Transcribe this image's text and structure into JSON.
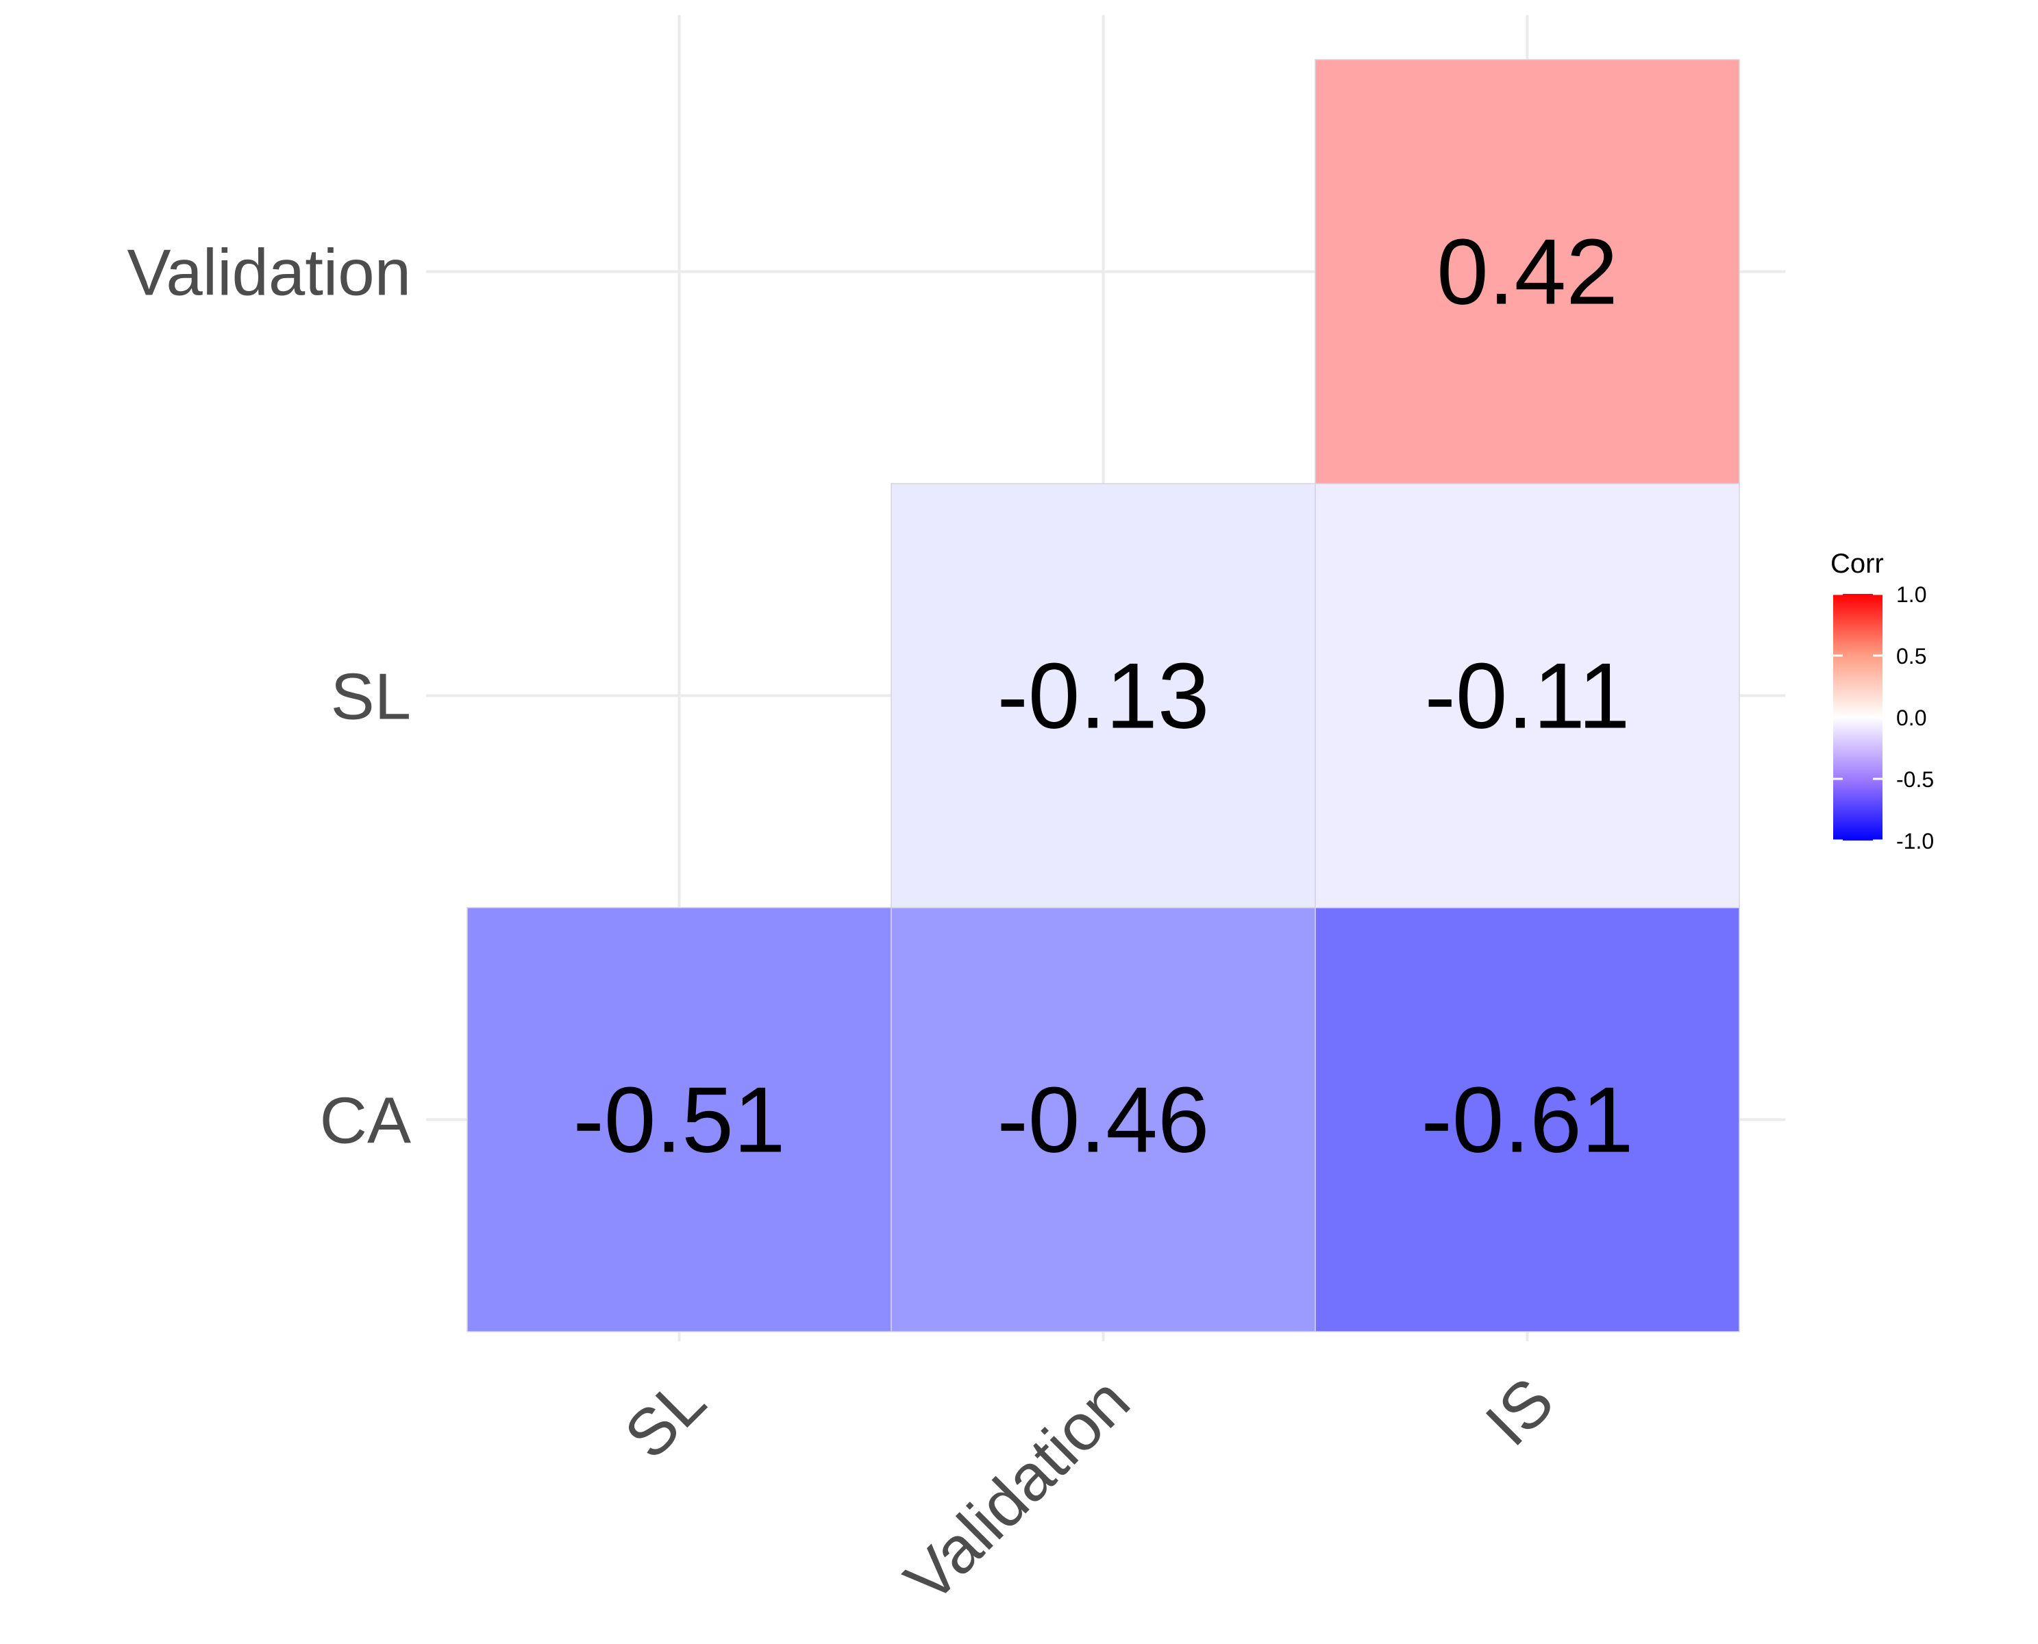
{
  "chart_data": {
    "type": "heatmap",
    "title": "",
    "xlabel": "",
    "ylabel": "",
    "x_categories": [
      "SL",
      "Validation",
      "IS"
    ],
    "y_categories": [
      "CA",
      "SL",
      "Validation"
    ],
    "cells": [
      {
        "x": "SL",
        "y": "CA",
        "value": -0.51,
        "label": "-0.51"
      },
      {
        "x": "Validation",
        "y": "CA",
        "value": -0.46,
        "label": "-0.46"
      },
      {
        "x": "IS",
        "y": "CA",
        "value": -0.61,
        "label": "-0.61"
      },
      {
        "x": "Validation",
        "y": "SL",
        "value": -0.13,
        "label": "-0.13"
      },
      {
        "x": "IS",
        "y": "SL",
        "value": -0.11,
        "label": "-0.11"
      },
      {
        "x": "IS",
        "y": "Validation",
        "value": 0.42,
        "label": "0.42"
      }
    ],
    "colorscale": {
      "low": "#0000ff",
      "mid": "#ffffff",
      "high": "#ff0000",
      "limits": [
        -1.0,
        1.0
      ]
    },
    "legend": {
      "title": "Corr",
      "placement": "right",
      "ticks": [
        {
          "value": 1.0,
          "label": "1.0"
        },
        {
          "value": 0.5,
          "label": "0.5"
        },
        {
          "value": 0.0,
          "label": "0.0"
        },
        {
          "value": -0.5,
          "label": "-0.5"
        },
        {
          "value": -1.0,
          "label": "-1.0"
        }
      ]
    },
    "grid": true,
    "x_tick_rotation": "45 degrees"
  }
}
